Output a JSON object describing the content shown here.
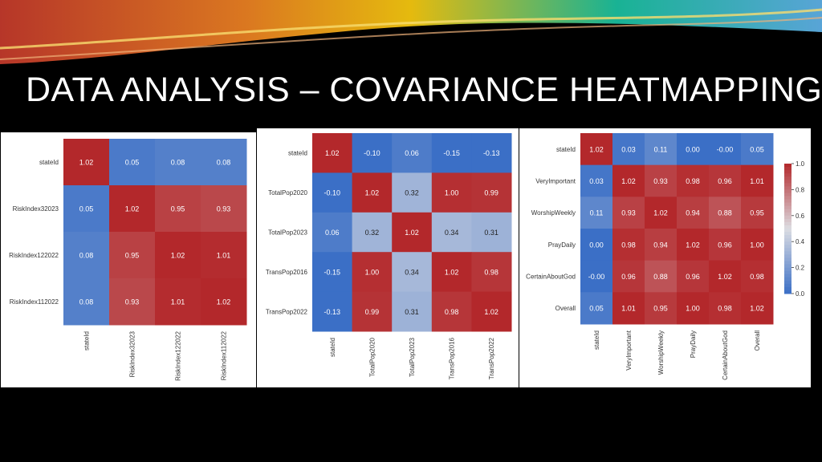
{
  "slide": {
    "title": "DATA ANALYSIS – COVARIANCE HEATMAPPING"
  },
  "colors": {
    "background": "#000000",
    "scale_low": "#3b6fc6",
    "scale_mid": "#dcdde2",
    "scale_high": "#b3282b",
    "banner": [
      "#c0392b",
      "#e67e22",
      "#f1c40f",
      "#1abc9c",
      "#5dade2"
    ]
  },
  "chart_data": [
    {
      "type": "heatmap",
      "title": "",
      "labels": [
        "stateId",
        "RiskIndex32023",
        "RiskIndex122022",
        "RiskIndex112022"
      ],
      "values": [
        [
          1.02,
          0.05,
          0.08,
          0.08
        ],
        [
          0.05,
          1.02,
          0.95,
          0.93
        ],
        [
          0.08,
          0.95,
          1.02,
          1.01
        ],
        [
          0.08,
          0.93,
          1.01,
          1.02
        ]
      ],
      "value_format": "2dp",
      "colorbar": false
    },
    {
      "type": "heatmap",
      "title": "",
      "labels": [
        "stateId",
        "TotalPop2020",
        "TotalPop2023",
        "TransPop2016",
        "TransPop2022"
      ],
      "values": [
        [
          1.02,
          -0.1,
          0.06,
          -0.15,
          -0.13
        ],
        [
          -0.1,
          1.02,
          0.32,
          1.0,
          0.99
        ],
        [
          0.06,
          0.32,
          1.02,
          0.34,
          0.31
        ],
        [
          -0.15,
          1.0,
          0.34,
          1.02,
          0.98
        ],
        [
          -0.13,
          0.99,
          0.31,
          0.98,
          1.02
        ]
      ],
      "value_format": "2dp",
      "colorbar": false
    },
    {
      "type": "heatmap",
      "title": "",
      "labels": [
        "stateId",
        "VeryImportant",
        "WorshipWeekly",
        "PrayDaily",
        "CertainAboutGod",
        "Overall"
      ],
      "values": [
        [
          1.02,
          0.03,
          0.11,
          0.0,
          -0.0,
          0.05
        ],
        [
          0.03,
          1.02,
          0.93,
          0.98,
          0.96,
          1.01
        ],
        [
          0.11,
          0.93,
          1.02,
          0.94,
          0.88,
          0.95
        ],
        [
          0.0,
          0.98,
          0.94,
          1.02,
          0.96,
          1.0
        ],
        [
          -0.0,
          0.96,
          0.88,
          0.96,
          1.02,
          0.98
        ],
        [
          0.05,
          1.01,
          0.95,
          1.0,
          0.98,
          1.02
        ]
      ],
      "value_format": "2dp",
      "colorbar": true,
      "colorbar_ticks": [
        "0.0",
        "0.2",
        "0.4",
        "0.6",
        "0.8",
        "1.0"
      ],
      "colorbar_range": [
        0.0,
        1.0
      ]
    }
  ]
}
